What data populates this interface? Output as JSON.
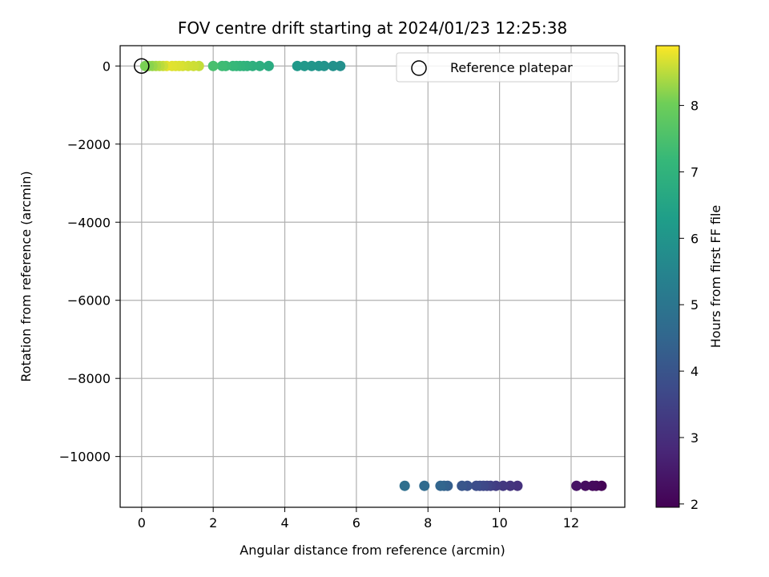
{
  "chart_data": {
    "type": "scatter",
    "title": "FOV centre drift starting at 2024/01/23 12:25:38",
    "xlabel": "Angular distance from reference (arcmin)",
    "ylabel": "Rotation from reference (arcmin)",
    "xlim": [
      -0.6,
      13.5
    ],
    "ylim": [
      -11300,
      520
    ],
    "xticks": [
      0,
      2,
      4,
      6,
      8,
      10,
      12
    ],
    "xtick_labels": [
      "0",
      "2",
      "4",
      "6",
      "8",
      "10",
      "12"
    ],
    "yticks": [
      0,
      -2000,
      -4000,
      -6000,
      -8000,
      -10000
    ],
    "ytick_labels": [
      "0",
      "−2000",
      "−4000",
      "−6000",
      "−8000",
      "−10000"
    ],
    "grid": true,
    "legend": {
      "placement": "top-right",
      "entries": [
        "Reference platepar"
      ]
    },
    "reference": {
      "name": "Reference platepar",
      "x": 0,
      "y": 0
    },
    "colorbar": {
      "label": "Hours from first FF file",
      "range": [
        1.95,
        8.9
      ],
      "ticks": [
        2,
        3,
        4,
        5,
        6,
        7,
        8
      ],
      "tick_labels": [
        "2",
        "3",
        "4",
        "5",
        "6",
        "7",
        "8"
      ],
      "colormap": "viridis"
    },
    "points": [
      {
        "x": 12.85,
        "y": -10750,
        "c": 2.0
      },
      {
        "x": 12.7,
        "y": -10750,
        "c": 2.1
      },
      {
        "x": 12.6,
        "y": -10750,
        "c": 2.15
      },
      {
        "x": 12.4,
        "y": -10750,
        "c": 2.25
      },
      {
        "x": 12.15,
        "y": -10750,
        "c": 2.35
      },
      {
        "x": 10.5,
        "y": -10750,
        "c": 3.05
      },
      {
        "x": 10.3,
        "y": -10750,
        "c": 3.15
      },
      {
        "x": 10.1,
        "y": -10750,
        "c": 3.25
      },
      {
        "x": 9.9,
        "y": -10750,
        "c": 3.35
      },
      {
        "x": 9.75,
        "y": -10750,
        "c": 3.45
      },
      {
        "x": 9.65,
        "y": -10750,
        "c": 3.55
      },
      {
        "x": 9.55,
        "y": -10750,
        "c": 3.65
      },
      {
        "x": 9.45,
        "y": -10750,
        "c": 3.7
      },
      {
        "x": 9.35,
        "y": -10750,
        "c": 3.8
      },
      {
        "x": 9.1,
        "y": -10750,
        "c": 3.95
      },
      {
        "x": 8.95,
        "y": -10750,
        "c": 4.05
      },
      {
        "x": 8.55,
        "y": -10750,
        "c": 4.3
      },
      {
        "x": 8.45,
        "y": -10750,
        "c": 4.4
      },
      {
        "x": 8.35,
        "y": -10750,
        "c": 4.5
      },
      {
        "x": 7.9,
        "y": -10750,
        "c": 4.65
      },
      {
        "x": 7.35,
        "y": -10750,
        "c": 4.8
      },
      {
        "x": 5.55,
        "y": 0,
        "c": 5.85
      },
      {
        "x": 5.35,
        "y": 0,
        "c": 5.9
      },
      {
        "x": 5.1,
        "y": 0,
        "c": 5.95
      },
      {
        "x": 4.95,
        "y": 0,
        "c": 6.0
      },
      {
        "x": 4.75,
        "y": 0,
        "c": 6.05
      },
      {
        "x": 4.55,
        "y": 0,
        "c": 6.1
      },
      {
        "x": 4.35,
        "y": 0,
        "c": 6.15
      },
      {
        "x": 3.55,
        "y": 0,
        "c": 6.75
      },
      {
        "x": 3.3,
        "y": 0,
        "c": 6.85
      },
      {
        "x": 3.1,
        "y": 0,
        "c": 6.9
      },
      {
        "x": 2.95,
        "y": 0,
        "c": 6.95
      },
      {
        "x": 2.85,
        "y": 0,
        "c": 7.0
      },
      {
        "x": 2.75,
        "y": 0,
        "c": 7.05
      },
      {
        "x": 2.65,
        "y": 0,
        "c": 7.1
      },
      {
        "x": 2.55,
        "y": 0,
        "c": 7.15
      },
      {
        "x": 2.35,
        "y": 0,
        "c": 7.25
      },
      {
        "x": 2.25,
        "y": 0,
        "c": 7.3
      },
      {
        "x": 2.0,
        "y": 0,
        "c": 7.45
      },
      {
        "x": 1.6,
        "y": 0,
        "c": 8.55
      },
      {
        "x": 1.45,
        "y": 0,
        "c": 8.6
      },
      {
        "x": 1.3,
        "y": 0,
        "c": 8.62
      },
      {
        "x": 1.15,
        "y": 0,
        "c": 8.65
      },
      {
        "x": 1.05,
        "y": 0,
        "c": 8.68
      },
      {
        "x": 0.95,
        "y": 0,
        "c": 8.7
      },
      {
        "x": 0.85,
        "y": 0,
        "c": 8.72
      },
      {
        "x": 0.7,
        "y": 0,
        "c": 8.74
      },
      {
        "x": 0.6,
        "y": 0,
        "c": 8.6
      },
      {
        "x": 0.5,
        "y": 0,
        "c": 8.5
      },
      {
        "x": 0.4,
        "y": 0,
        "c": 8.4
      },
      {
        "x": 0.3,
        "y": 0,
        "c": 8.3
      },
      {
        "x": 0.2,
        "y": 0,
        "c": 8.2
      },
      {
        "x": 0.1,
        "y": 0,
        "c": 8.1
      }
    ]
  }
}
